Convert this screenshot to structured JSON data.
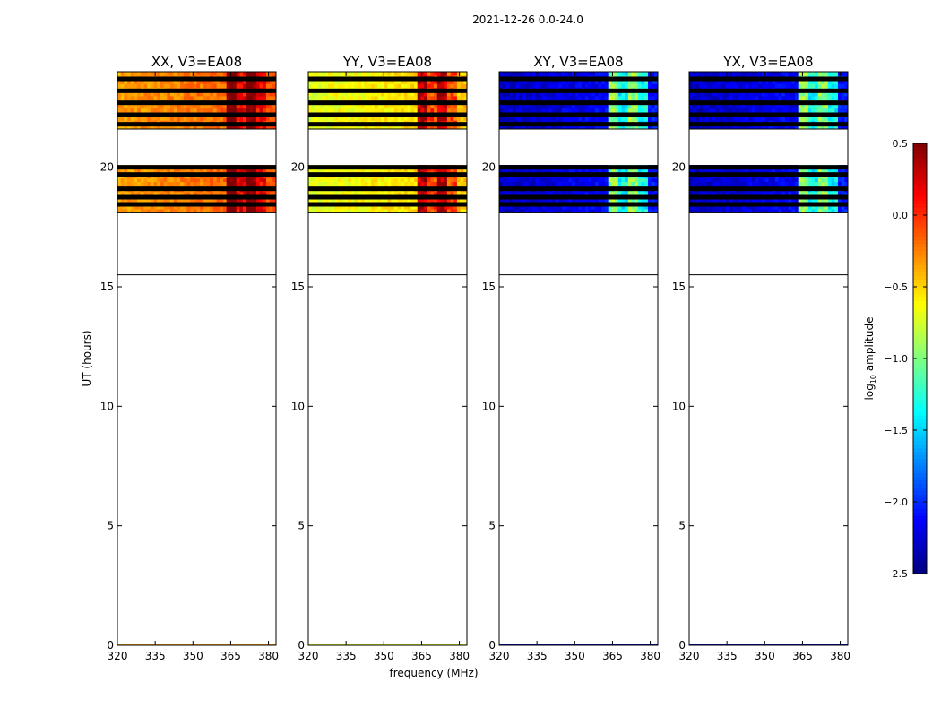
{
  "figure": {
    "suptitle": "2021-12-26 0.0-24.0",
    "xlabel": "frequency (MHz)",
    "ylabel": "UT (hours)"
  },
  "chart_data": {
    "type": "heatmap",
    "x": {
      "label": "frequency (MHz)",
      "ticks": [
        320,
        335,
        350,
        365,
        380
      ],
      "range": [
        320,
        383
      ]
    },
    "y": {
      "label": "UT (hours)",
      "ticks": [
        0,
        5,
        10,
        15,
        20
      ],
      "range": [
        0,
        24
      ]
    },
    "time_coverage_hours": [
      [
        21.6,
        24.0
      ],
      [
        18.1,
        20.1
      ]
    ],
    "flagged_rows_hours": [
      23.7,
      23.2,
      22.7,
      22.2,
      21.8,
      20.0,
      19.7,
      19.1,
      18.75,
      18.45
    ],
    "rfi_band_mhz": [
      363,
      378
    ],
    "panels": [
      {
        "title": "XX, V3=EA08",
        "polarization": "XX",
        "base_log_amp": -0.35,
        "band_log_amp": 0.3
      },
      {
        "title": "YY, V3=EA08",
        "polarization": "YY",
        "base_log_amp": -0.7,
        "band_log_amp": 0.05
      },
      {
        "title": "XY, V3=EA08",
        "polarization": "XY",
        "base_log_amp": -2.3,
        "band_log_amp": -1.2
      },
      {
        "title": "YX, V3=EA08",
        "polarization": "YX",
        "base_log_amp": -2.3,
        "band_log_amp": -1.2
      }
    ],
    "colorbar": {
      "label_main": "log",
      "label_sub": "10",
      "label_rest": " amplitude",
      "min": -2.5,
      "max": 0.5,
      "ticks": [
        0.5,
        0.0,
        -0.5,
        -1.0,
        -1.5,
        -2.0,
        -2.5
      ],
      "tick_labels": [
        "0.5",
        "0.0",
        "−0.5",
        "−1.0",
        "−1.5",
        "−2.0",
        "−2.5"
      ],
      "colormap": "jet"
    }
  }
}
